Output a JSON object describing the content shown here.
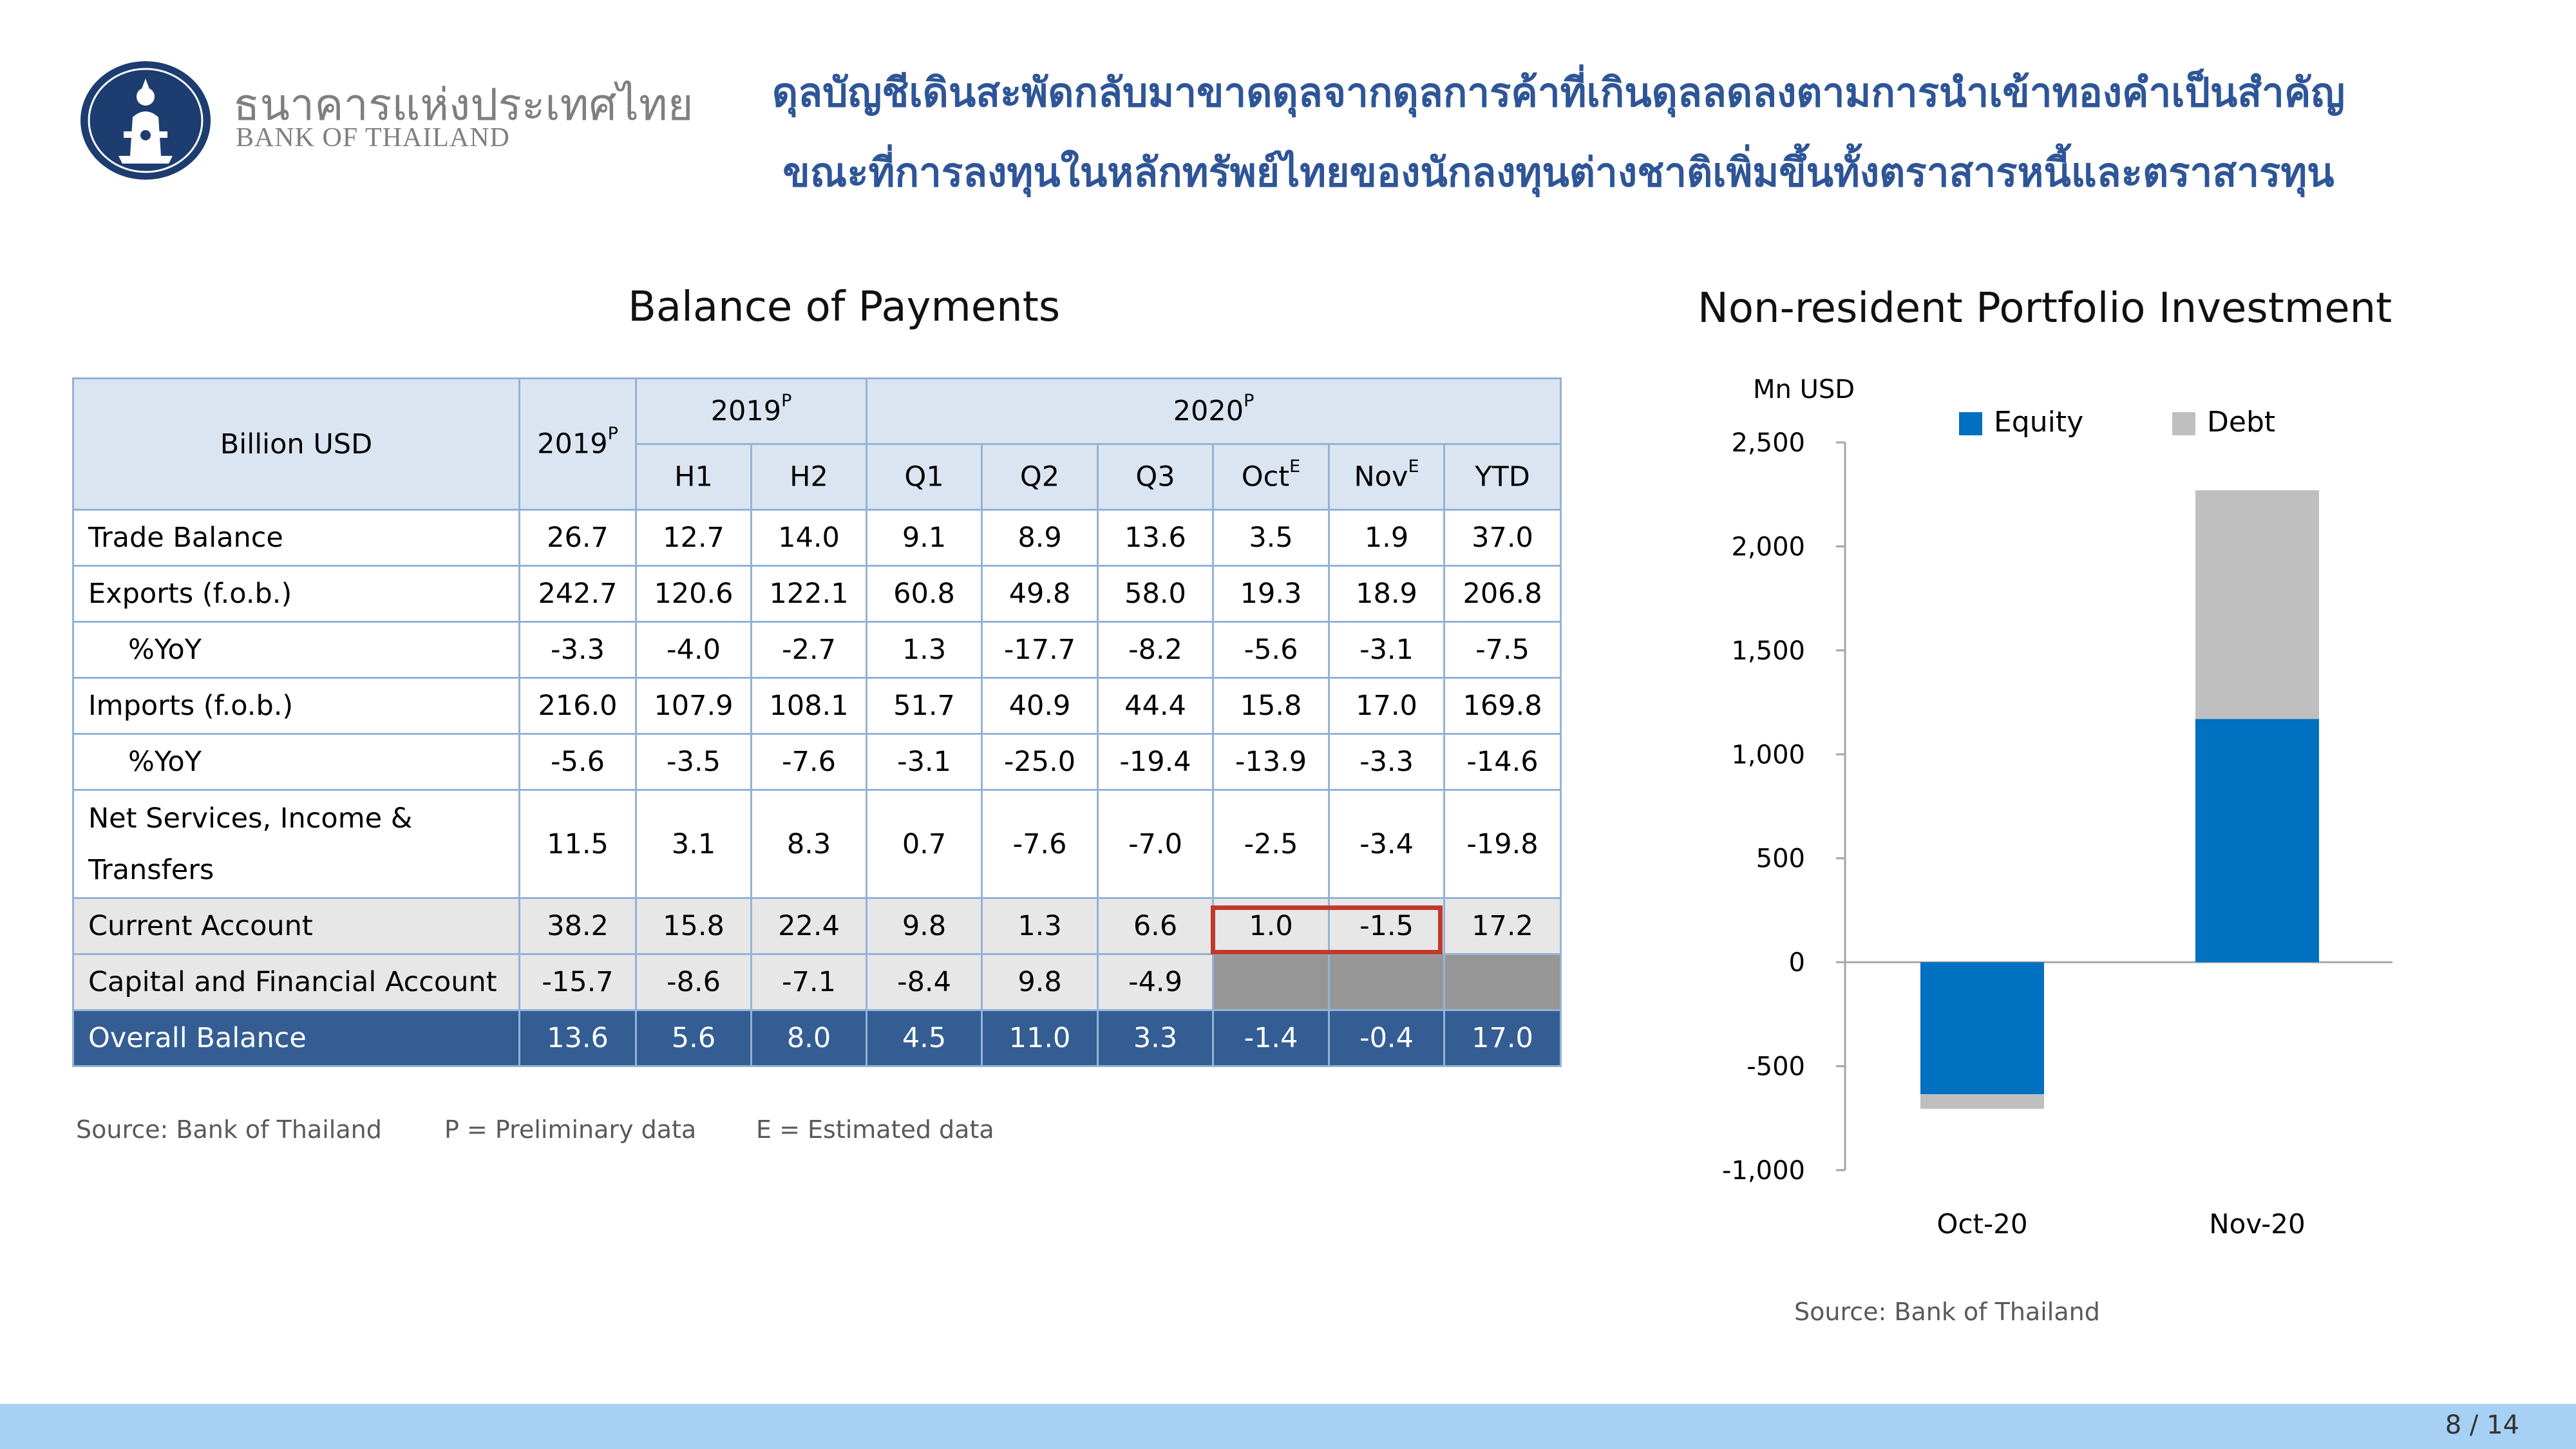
{
  "header": {
    "logo_thai": "ธนาคารแห่งประเทศไทย",
    "logo_english": "BANK OF THAILAND",
    "headline_line1": "ดุลบัญชีเดินสะพัดกลับมาขาดดุลจากดุลการค้าที่เกินดุลลดลงตามการนำเข้าทองคำเป็นสำคัญ",
    "headline_line2": "ขณะที่การลงทุนในหลักทรัพย์ไทยของนักลงทุนต่างชาติเพิ่มขึ้นทั้งตราสารหนี้และตราสารทุน",
    "accent_color": "#2e5597"
  },
  "table": {
    "title": "Balance of Payments",
    "corner_label": "Billion USD",
    "year_col": {
      "label": "2019",
      "sup": "P"
    },
    "group_2019": {
      "label": "2019",
      "sup": "P"
    },
    "group_2020": {
      "label": "2020",
      "sup": "P"
    },
    "subheaders": [
      {
        "label": "H1",
        "sup": ""
      },
      {
        "label": "H2",
        "sup": ""
      },
      {
        "label": "Q1",
        "sup": ""
      },
      {
        "label": "Q2",
        "sup": ""
      },
      {
        "label": "Q3",
        "sup": ""
      },
      {
        "label": "Oct",
        "sup": "E"
      },
      {
        "label": "Nov",
        "sup": "E"
      },
      {
        "label": "YTD",
        "sup": ""
      }
    ],
    "rows": [
      {
        "label": "Trade Balance",
        "values": [
          "26.7",
          "12.7",
          "14.0",
          "9.1",
          "8.9",
          "13.6",
          "3.5",
          "1.9",
          "37.0"
        ]
      },
      {
        "label": "Exports (f.o.b.)",
        "values": [
          "242.7",
          "120.6",
          "122.1",
          "60.8",
          "49.8",
          "58.0",
          "19.3",
          "18.9",
          "206.8"
        ]
      },
      {
        "label": "%YoY",
        "values": [
          "-3.3",
          "-4.0",
          "-2.7",
          "1.3",
          "-17.7",
          "-8.2",
          "-5.6",
          "-3.1",
          "-7.5"
        ]
      },
      {
        "label": "Imports (f.o.b.)",
        "values": [
          "216.0",
          "107.9",
          "108.1",
          "51.7",
          "40.9",
          "44.4",
          "15.8",
          "17.0",
          "169.8"
        ]
      },
      {
        "label": "%YoY",
        "values": [
          "-5.6",
          "-3.5",
          "-7.6",
          "-3.1",
          "-25.0",
          "-19.4",
          "-13.9",
          "-3.3",
          "-14.6"
        ]
      },
      {
        "label": "Net Services, Income & Transfers",
        "values": [
          "11.5",
          "3.1",
          "8.3",
          "0.7",
          "-7.6",
          "-7.0",
          "-2.5",
          "-3.4",
          "-19.8"
        ]
      },
      {
        "label": "Current Account",
        "values": [
          "38.2",
          "15.8",
          "22.4",
          "9.8",
          "1.3",
          "6.6",
          "1.0",
          "-1.5",
          "17.2"
        ]
      },
      {
        "label": "Capital and Financial Account",
        "values": [
          "-15.7",
          "-8.6",
          "-7.1",
          "-8.4",
          "9.8",
          "-4.9",
          "",
          "",
          ""
        ]
      },
      {
        "label": "Overall Balance",
        "values": [
          "13.6",
          "5.6",
          "8.0",
          "4.5",
          "11.0",
          "3.3",
          "-1.4",
          "-0.4",
          "17.0"
        ]
      }
    ],
    "source": "Source: Bank of Thailand",
    "note_p": "P = Preliminary data",
    "note_e": "E = Estimated data"
  },
  "chart_data": {
    "type": "bar",
    "stacked": true,
    "title": "Non-resident Portfolio Investment",
    "ylabel": "Mn USD",
    "xlabel": "",
    "categories": [
      "Oct-20",
      "Nov-20"
    ],
    "series": [
      {
        "name": "Equity",
        "values": [
          -635,
          1170
        ],
        "color": "#0070c0"
      },
      {
        "name": "Debt",
        "values": [
          -70,
          1100
        ],
        "color": "#bfbfbf"
      }
    ],
    "ylim": [
      -1000,
      2500
    ],
    "yticks": [
      -1000,
      -500,
      0,
      500,
      1000,
      1500,
      2000,
      2500
    ],
    "ytick_labels": [
      "-1,000",
      "-500",
      "0",
      "500",
      "1,000",
      "1,500",
      "2,000",
      "2,500"
    ],
    "legend_position": "top",
    "grid": false,
    "source": "Source: Bank of Thailand"
  },
  "footer": {
    "page": "8 / 14",
    "bar_color": "#a7d0f5"
  }
}
